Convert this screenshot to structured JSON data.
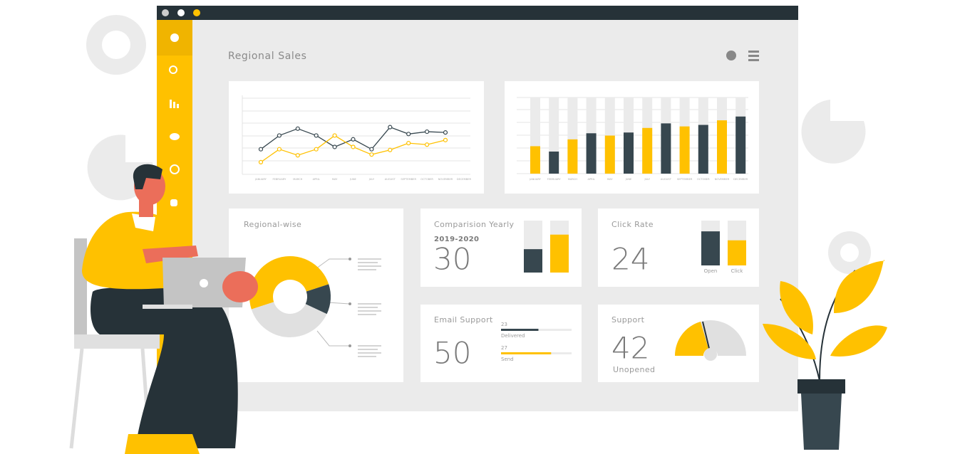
{
  "header": {
    "title": "Regional Sales"
  },
  "line_chart": {
    "categories": [
      "JANUARY",
      "FEBRUARY",
      "MARCH",
      "APRIL",
      "MAY",
      "JUNE",
      "JULY",
      "AUGUST",
      "SEPTEMBER",
      "OCTOBER",
      "NOVEMBER",
      "DECEMBER"
    ],
    "ylim": [
      0,
      100
    ],
    "series": [
      {
        "color": "#37474f",
        "values": [
          33,
          51,
          60,
          51,
          36,
          46,
          33,
          62,
          53,
          56,
          55,
          null
        ]
      },
      {
        "color": "#ffc100",
        "values": [
          16,
          33,
          25,
          33,
          51,
          36,
          26,
          32,
          41,
          39,
          45,
          null
        ]
      }
    ]
  },
  "bar_chart": {
    "ylim": [
      0,
      100
    ],
    "values": [
      36,
      29,
      45,
      53,
      50,
      54,
      60,
      66,
      62,
      64,
      70,
      75
    ],
    "colors": [
      "#ffc100",
      "#37474f",
      "#ffc100",
      "#37474f",
      "#ffc100",
      "#37474f",
      "#ffc100",
      "#37474f",
      "#ffc100",
      "#37474f",
      "#ffc100",
      "#37474f"
    ]
  },
  "regional": {
    "title": "Regional-wise",
    "values": [
      50,
      12,
      38
    ],
    "colors": [
      "#ffc100",
      "#37474f",
      "#e0e0e0"
    ]
  },
  "comparison": {
    "title": "Comparision Yearly",
    "period": "2019-2020",
    "value": 30,
    "bars": [
      45,
      73
    ],
    "colors": [
      "#37474f",
      "#ffc100"
    ]
  },
  "click_rate": {
    "title": "Click Rate",
    "value": 24,
    "bars": [
      76,
      56
    ],
    "labels": [
      "Open",
      "Click"
    ],
    "colors": [
      "#37474f",
      "#ffc100"
    ]
  },
  "email": {
    "title": "Email Support",
    "value": 50,
    "rows": [
      {
        "count": 23,
        "label": "Delivered",
        "bar": 53,
        "color": "#37474f"
      },
      {
        "count": 27,
        "label": "Send",
        "bar": 71,
        "color": "#ffc100"
      }
    ]
  },
  "support": {
    "title": "Support",
    "value": 42,
    "label": "Unopened"
  }
}
